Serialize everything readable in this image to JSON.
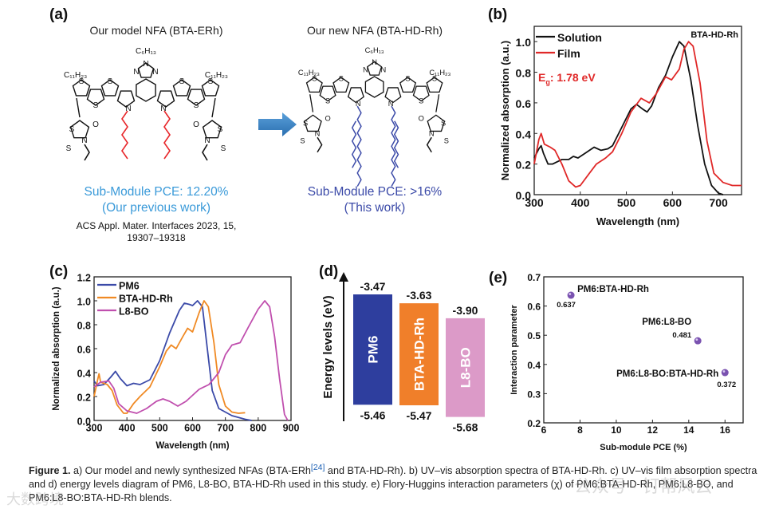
{
  "panel_a": {
    "label": "(a)",
    "left_title": "Our model NFA (BTA-ERh)",
    "right_title": "Our new NFA (BTA-HD-Rh)",
    "left_pce": "Sub-Module PCE: 12.20%",
    "left_note": "(Our previous work)",
    "left_ref_line1": "ACS Appl. Mater. Interfaces 2023, 15,",
    "left_ref_line2": "19307–19318",
    "right_pce": "Sub-Module PCE: >16%",
    "right_note": "(This work)",
    "atoms": {
      "core_alkyl": "C₆H₁₃",
      "side_alkyl": "C₁₁H₂₃",
      "N": "N",
      "S": "S",
      "O": "O"
    },
    "left_chain_color": "#e8262a",
    "right_chain_color": "#3b4aa8",
    "arrow_color": "#3a86c8"
  },
  "chart_data": [
    {
      "id": "b",
      "label": "(b)",
      "type": "line",
      "title": "",
      "annotation": "BTA-HD-Rh",
      "eg_label": "E",
      "eg_sub": "g",
      "eg_value": ": 1.78 eV",
      "xlabel": "Wavelength (nm)",
      "ylabel": "Normalized absorption (a.u.)",
      "xlim": [
        300,
        750
      ],
      "ylim": [
        0,
        1.1
      ],
      "xticks": [
        300,
        400,
        500,
        600,
        700
      ],
      "yticks": [
        "0.0",
        "0.2",
        "0.4",
        "0.6",
        "0.8",
        "1.0"
      ],
      "legend_position": "top-left",
      "series": [
        {
          "name": "Solution",
          "color": "#111111",
          "points": [
            [
              300,
              0.24
            ],
            [
              310,
              0.3
            ],
            [
              315,
              0.32
            ],
            [
              320,
              0.27
            ],
            [
              330,
              0.2
            ],
            [
              340,
              0.2
            ],
            [
              360,
              0.23
            ],
            [
              375,
              0.23
            ],
            [
              385,
              0.25
            ],
            [
              395,
              0.24
            ],
            [
              410,
              0.27
            ],
            [
              430,
              0.31
            ],
            [
              445,
              0.29
            ],
            [
              460,
              0.3
            ],
            [
              470,
              0.32
            ],
            [
              490,
              0.44
            ],
            [
              510,
              0.56
            ],
            [
              522,
              0.59
            ],
            [
              535,
              0.56
            ],
            [
              545,
              0.54
            ],
            [
              555,
              0.58
            ],
            [
              570,
              0.7
            ],
            [
              585,
              0.78
            ],
            [
              600,
              0.9
            ],
            [
              615,
              1.0
            ],
            [
              625,
              0.97
            ],
            [
              640,
              0.75
            ],
            [
              655,
              0.45
            ],
            [
              670,
              0.2
            ],
            [
              685,
              0.06
            ],
            [
              700,
              0.01
            ],
            [
              710,
              0.0
            ]
          ]
        },
        {
          "name": "Film",
          "color": "#e02828",
          "points": [
            [
              300,
              0.2
            ],
            [
              310,
              0.36
            ],
            [
              315,
              0.4
            ],
            [
              322,
              0.33
            ],
            [
              335,
              0.31
            ],
            [
              345,
              0.29
            ],
            [
              360,
              0.2
            ],
            [
              375,
              0.09
            ],
            [
              390,
              0.05
            ],
            [
              400,
              0.06
            ],
            [
              420,
              0.14
            ],
            [
              435,
              0.2
            ],
            [
              455,
              0.24
            ],
            [
              470,
              0.28
            ],
            [
              490,
              0.4
            ],
            [
              510,
              0.54
            ],
            [
              532,
              0.63
            ],
            [
              550,
              0.6
            ],
            [
              565,
              0.66
            ],
            [
              585,
              0.77
            ],
            [
              598,
              0.75
            ],
            [
              615,
              0.82
            ],
            [
              625,
              0.95
            ],
            [
              635,
              1.0
            ],
            [
              645,
              0.97
            ],
            [
              660,
              0.73
            ],
            [
              675,
              0.35
            ],
            [
              690,
              0.14
            ],
            [
              710,
              0.08
            ],
            [
              730,
              0.06
            ],
            [
              750,
              0.06
            ]
          ]
        }
      ]
    },
    {
      "id": "c",
      "label": "(c)",
      "type": "line",
      "xlabel": "Wavelength (nm)",
      "ylabel": "Normalized absorption (a.u.)",
      "xlim": [
        300,
        900
      ],
      "ylim": [
        0,
        1.2
      ],
      "xticks": [
        300,
        400,
        500,
        600,
        700,
        800,
        900
      ],
      "yticks": [
        "0.0",
        "0.2",
        "0.4",
        "0.6",
        "0.8",
        "1.0",
        "1.2"
      ],
      "legend_position": "top-left",
      "series": [
        {
          "name": "PM6",
          "color": "#3b4aa8",
          "points": [
            [
              300,
              0.33
            ],
            [
              310,
              0.29
            ],
            [
              330,
              0.3
            ],
            [
              350,
              0.36
            ],
            [
              365,
              0.41
            ],
            [
              380,
              0.35
            ],
            [
              400,
              0.29
            ],
            [
              420,
              0.31
            ],
            [
              440,
              0.3
            ],
            [
              470,
              0.34
            ],
            [
              500,
              0.5
            ],
            [
              530,
              0.73
            ],
            [
              560,
              0.92
            ],
            [
              575,
              0.98
            ],
            [
              590,
              0.97
            ],
            [
              600,
              0.96
            ],
            [
              615,
              1.0
            ],
            [
              630,
              0.95
            ],
            [
              645,
              0.6
            ],
            [
              660,
              0.25
            ],
            [
              680,
              0.1
            ],
            [
              720,
              0.04
            ],
            [
              760,
              0.01
            ],
            [
              780,
              0.0
            ]
          ]
        },
        {
          "name": "BTA-HD-Rh",
          "color": "#f08a24",
          "points": [
            [
              300,
              0.2
            ],
            [
              310,
              0.33
            ],
            [
              315,
              0.39
            ],
            [
              320,
              0.32
            ],
            [
              340,
              0.3
            ],
            [
              355,
              0.25
            ],
            [
              370,
              0.13
            ],
            [
              390,
              0.06
            ],
            [
              400,
              0.06
            ],
            [
              420,
              0.14
            ],
            [
              440,
              0.2
            ],
            [
              470,
              0.28
            ],
            [
              500,
              0.45
            ],
            [
              520,
              0.58
            ],
            [
              535,
              0.63
            ],
            [
              550,
              0.6
            ],
            [
              570,
              0.7
            ],
            [
              585,
              0.77
            ],
            [
              600,
              0.74
            ],
            [
              620,
              0.9
            ],
            [
              635,
              1.0
            ],
            [
              648,
              0.95
            ],
            [
              665,
              0.65
            ],
            [
              680,
              0.3
            ],
            [
              700,
              0.12
            ],
            [
              720,
              0.07
            ],
            [
              740,
              0.06
            ],
            [
              760,
              0.065
            ]
          ]
        },
        {
          "name": "L8-BO",
          "color": "#c04fae",
          "points": [
            [
              300,
              0.28
            ],
            [
              320,
              0.32
            ],
            [
              345,
              0.33
            ],
            [
              360,
              0.27
            ],
            [
              375,
              0.14
            ],
            [
              400,
              0.08
            ],
            [
              430,
              0.06
            ],
            [
              460,
              0.1
            ],
            [
              490,
              0.16
            ],
            [
              510,
              0.18
            ],
            [
              530,
              0.16
            ],
            [
              555,
              0.12
            ],
            [
              580,
              0.16
            ],
            [
              620,
              0.26
            ],
            [
              650,
              0.3
            ],
            [
              680,
              0.4
            ],
            [
              700,
              0.55
            ],
            [
              720,
              0.63
            ],
            [
              745,
              0.65
            ],
            [
              770,
              0.78
            ],
            [
              800,
              0.93
            ],
            [
              820,
              1.0
            ],
            [
              835,
              0.95
            ],
            [
              850,
              0.7
            ],
            [
              865,
              0.35
            ],
            [
              880,
              0.05
            ],
            [
              890,
              0.0
            ]
          ]
        }
      ]
    },
    {
      "id": "d",
      "label": "(d)",
      "type": "bar",
      "ylabel": "Energy levels  (eV)",
      "bars": [
        {
          "name": "PM6",
          "lumo": -3.47,
          "homo": -5.46,
          "lumo_label": "-3.47",
          "homo_label": "-5.46",
          "color": "#2e3e9e"
        },
        {
          "name": "BTA-HD-Rh",
          "lumo": -3.63,
          "homo": -5.47,
          "lumo_label": "-3.63",
          "homo_label": "-5.47",
          "color": "#f07f2a"
        },
        {
          "name": "L8-BO",
          "lumo": -3.9,
          "homo": -5.68,
          "lumo_label": "-3.90",
          "homo_label": "-5.68",
          "color": "#dc9ac8"
        }
      ]
    },
    {
      "id": "e",
      "label": "(e)",
      "type": "scatter",
      "xlabel": "Sub-module PCE (%)",
      "ylabel": "Interaction parameter",
      "xlim": [
        6,
        17
      ],
      "ylim": [
        0.2,
        0.7
      ],
      "xticks": [
        6,
        8,
        10,
        12,
        14,
        16
      ],
      "yticks": [
        "0.2",
        "0.3",
        "0.4",
        "0.5",
        "0.6",
        "0.7"
      ],
      "color": "#7a52b0",
      "points": [
        {
          "name": "PM6:BTA-HD-Rh",
          "x": 7.5,
          "y": 0.637,
          "value_label": "0.637"
        },
        {
          "name": "PM6:L8-BO",
          "x": 14.5,
          "y": 0.481,
          "value_label": "0.481"
        },
        {
          "name": "PM6:L8-BO:BTA-HD-Rh",
          "x": 16.0,
          "y": 0.372,
          "value_label": "0.372"
        }
      ]
    }
  ],
  "caption": {
    "figure_label": "Figure 1.",
    "text_1": " a) Our model and newly synthesized NFAs (BTA-ERh",
    "ref": "[24]",
    "text_2": " and BTA-HD-Rh). b) UV–vis absorption spectra of BTA-HD-Rh. c) UV–vis film absorption spectra and d) energy levels diagram of PM6, L8-BO, BTA-HD-Rh used in this study. e) Flory-Huggins interaction parameters (χ) of PM6:BTA-HD-Rh, PM6:L8-BO, and PM6:L8-BO:BTA-HD-Rh blends."
  },
  "watermarks": {
    "right": "公众号 · 钉帮风云",
    "left": "大数跨境"
  }
}
